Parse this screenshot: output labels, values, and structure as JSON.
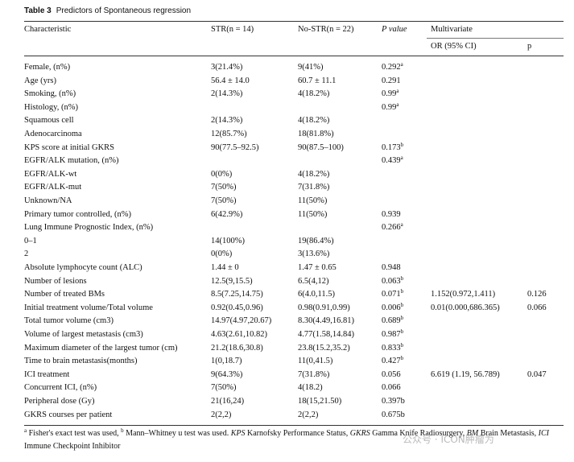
{
  "caption": {
    "label": "Table 3",
    "title": "Predictors of Spontaneous regression"
  },
  "table": {
    "header": {
      "c": "Characteristic",
      "str": "STR(n = 14)",
      "nostr": "No-STR(n = 22)",
      "p": "P value",
      "multi": "Multivariate",
      "or": "OR (95% CI)",
      "p2": "p"
    },
    "rows": [
      {
        "c": "Female, (n%)",
        "str": "3(21.4%)",
        "nostr": "9(41%)",
        "p": "0.292",
        "sup": "a"
      },
      {
        "c": "Age (yrs)",
        "str": "56.4 ± 14.0",
        "nostr": "60.7 ± 11.1",
        "p": "0.291"
      },
      {
        "c": "Smoking, (n%)",
        "str": "2(14.3%)",
        "nostr": "4(18.2%)",
        "p": "0.99",
        "sup": "a"
      },
      {
        "c": "Histology, (n%)",
        "p": "0.99",
        "sup": "a"
      },
      {
        "c": "Squamous cell",
        "str": "2(14.3%)",
        "nostr": "4(18.2%)"
      },
      {
        "c": "Adenocarcinoma",
        "str": "12(85.7%)",
        "nostr": "18(81.8%)"
      },
      {
        "c": "KPS score at initial GKRS",
        "str": "90(77.5–92.5)",
        "nostr": "90(87.5–100)",
        "p": "0.173",
        "sup": "b"
      },
      {
        "c": "EGFR/ALK mutation, (n%)",
        "p": "0.439",
        "sup": "a"
      },
      {
        "c": "EGFR/ALK-wt",
        "str": "0(0%)",
        "nostr": "4(18.2%)"
      },
      {
        "c": "EGFR/ALK-mut",
        "str": "7(50%)",
        "nostr": "7(31.8%)"
      },
      {
        "c": "Unknown/NA",
        "str": "7(50%)",
        "nostr": "11(50%)"
      },
      {
        "c": "Primary tumor controlled, (n%)",
        "str": "6(42.9%)",
        "nostr": "11(50%)",
        "p": "0.939"
      },
      {
        "c": "Lung Immune Prognostic Index, (n%)",
        "p": "0.266",
        "sup": "a"
      },
      {
        "c": "0–1",
        "str": "14(100%)",
        "nostr": "19(86.4%)"
      },
      {
        "c": "2",
        "str": "0(0%)",
        "nostr": "3(13.6%)"
      },
      {
        "c": "Absolute lymphocyte count (ALC)",
        "str": "1.44 ± 0",
        "nostr": "1.47 ± 0.65",
        "p": "0.948"
      },
      {
        "c": "Number of lesions",
        "str": "12.5(9,15.5)",
        "nostr": "6.5(4,12)",
        "p": "0.063",
        "sup": "b"
      },
      {
        "c": "Number of treated BMs",
        "str": "8.5(7.25,14.75)",
        "nostr": "6(4.0,11.5)",
        "p": "0.071",
        "sup": "b",
        "or": "1.152(0.972,1.411)",
        "p2": "0.126"
      },
      {
        "c": "Initial treatment volume/Total volume",
        "str": "0.92(0.45,0.96)",
        "nostr": "0.98(0.91,0.99)",
        "p": "0.006",
        "sup": "b",
        "or": "0.01(0.000,686.365)",
        "p2": "0.066"
      },
      {
        "c": "Total tumor volume (cm3)",
        "str": "14.97(4.97,20.67)",
        "nostr": "8.30(4.49,16.81)",
        "p": "0.689",
        "sup": "b"
      },
      {
        "c": "Volume of largest metastasis (cm3)",
        "str": "4.63(2.61,10.82)",
        "nostr": "4.77(1.58,14.84)",
        "p": "0.987",
        "sup": "b"
      },
      {
        "c": "Maximum diameter of the largest tumor (cm)",
        "str": "21.2(18.6,30.8)",
        "nostr": "23.8(15.2,35.2)",
        "p": "0.833",
        "sup": "b"
      },
      {
        "c": "Time to brain metastasis(months)",
        "str": "1(0,18.7)",
        "nostr": "11(0,41.5)",
        "p": "0.427",
        "sup": "b"
      },
      {
        "c": "ICI treatment",
        "str": "9(64.3%)",
        "nostr": "7(31.8%)",
        "p": "0.056",
        "or": "6.619 (1.19, 56.789)",
        "p2": "0.047"
      },
      {
        "c": "Concurrent ICI, (n%)",
        "str": "7(50%)",
        "nostr": "4(18.2)",
        "p": "0.066"
      },
      {
        "c": "Peripheral dose (Gy)",
        "str": "21(16,24)",
        "nostr": "18(15,21.50)",
        "p": "0.397b"
      },
      {
        "c": "GKRS courses per patient",
        "str": "2(2,2)",
        "nostr": "2(2,2)",
        "p": "0.675b"
      }
    ]
  },
  "footnote": [
    {
      "sup": "a"
    },
    {
      "text": " Fisher's exact test was used, "
    },
    {
      "sup": "b"
    },
    {
      "text": " Mann–Whitney u test was used. "
    },
    {
      "abbr": "KPS"
    },
    {
      "text": " Karnofsky Performance Status, "
    },
    {
      "abbr": "GKRS"
    },
    {
      "text": " Gamma Knife Radiosurgery, "
    },
    {
      "abbr": "BM"
    },
    {
      "text": " Brain Metastasis, "
    },
    {
      "abbr": "ICI"
    },
    {
      "text": " Immune Checkpoint Inhibitor"
    }
  ],
  "watermark": "公众号 · ICON肿瘤为"
}
